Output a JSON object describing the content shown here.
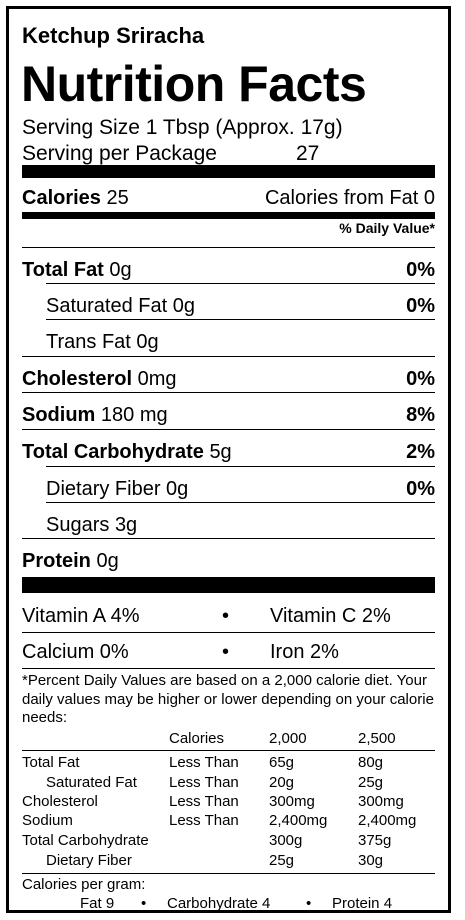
{
  "product": "Ketchup Sriracha",
  "title": "Nutrition Facts",
  "serving": {
    "size_label": "Serving Size 1 Tbsp (Approx. 17g)",
    "package_label": "Serving per Package",
    "package_value": "27"
  },
  "calories": {
    "label": "Calories",
    "value": "25",
    "from_fat": "Calories from Fat 0"
  },
  "dv_header": "% Daily Value*",
  "nutrients": [
    {
      "name": "Total Fat",
      "amount": "0g",
      "dv": "0%"
    },
    {
      "name": "Saturated Fat",
      "amount": "0g",
      "dv": "0%"
    },
    {
      "name": "Trans Fat",
      "amount": "0g",
      "dv": ""
    },
    {
      "name": "Cholesterol",
      "amount": "0mg",
      "dv": "0%"
    },
    {
      "name": "Sodium",
      "amount": "180 mg",
      "dv": "8%"
    },
    {
      "name": "Total Carbohydrate",
      "amount": "5g",
      "dv": "2%"
    },
    {
      "name": "Dietary Fiber",
      "amount": "0g",
      "dv": "0%"
    },
    {
      "name": "Sugars",
      "amount": "3g",
      "dv": ""
    },
    {
      "name": "Protein",
      "amount": "0g",
      "dv": ""
    }
  ],
  "vitamins": {
    "vitamin_a": "Vitamin A 4%",
    "vitamin_c": "Vitamin C  2%",
    "calcium": "Calcium 0%",
    "iron": "Iron 2%",
    "bullet": "•"
  },
  "footnote": {
    "text": "*Percent Daily Values are based on a 2,000 calorie diet. Your daily values may be higher or lower depending on your calorie needs:",
    "header": [
      "Calories",
      "2,000",
      "2,500"
    ],
    "rows": [
      {
        "name": "Total Fat",
        "limit": "Less Than",
        "v2000": "65g",
        "v2500": "80g"
      },
      {
        "name": "Saturated Fat",
        "limit": "Less Than",
        "v2000": "20g",
        "v2500": "25g"
      },
      {
        "name": "Cholesterol",
        "limit": "Less Than",
        "v2000": "300mg",
        "v2500": "300mg"
      },
      {
        "name": "Sodium",
        "limit": "Less Than",
        "v2000": "2,400mg",
        "v2500": "2,400mg"
      },
      {
        "name": "Total Carbohydrate",
        "limit": "",
        "v2000": "300g",
        "v2500": "375g"
      },
      {
        "name": "Dietary Fiber",
        "limit": "",
        "v2000": "25g",
        "v2500": "30g"
      }
    ],
    "per_gram_label": "Calories per gram:",
    "per_gram": {
      "fat": "Fat 9",
      "carb": "Carbohydrate 4",
      "protein": "Protein 4",
      "bullet": "•"
    }
  }
}
